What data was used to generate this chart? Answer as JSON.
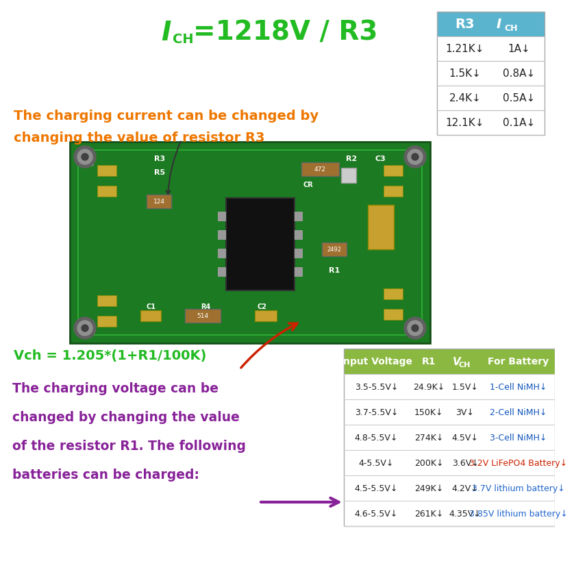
{
  "background_color": "#ffffff",
  "title_color": "#22bb22",
  "top_table_header_bg": "#5ab4cd",
  "top_table_header": [
    "R3",
    "ICH"
  ],
  "top_table_rows": [
    [
      "1.21K",
      "1A"
    ],
    [
      "1.5K",
      "0.8A"
    ],
    [
      "2.4K",
      "0.5A"
    ],
    [
      "12.1K",
      "0.1A"
    ]
  ],
  "orange_color": "#ee7700",
  "orange_line1": "The charging current can be changed by",
  "orange_line2": "changing the value of resistor R3",
  "bottom_formula": "Vch = 1.205*(1+R1/100K)",
  "bottom_formula_color": "#22bb22",
  "purple_color": "#882299",
  "purple_text_lines": [
    "The charging voltage can be",
    "changed by changing the value",
    "of the resistor R1. The following",
    "batteries can be charged:"
  ],
  "bottom_table_header_bg": "#8ab840",
  "bottom_table_header": [
    "Input Voltage",
    "R1",
    "VCH",
    "For Battery"
  ],
  "bottom_table_rows": [
    [
      "3.5-5.5V",
      "24.9K",
      "1.5V",
      "1-Cell NiMH"
    ],
    [
      "3.7-5.5V",
      "150K",
      "3V",
      "2-Cell NiMH"
    ],
    [
      "4.8-5.5V",
      "274K",
      "4.5V",
      "3-Cell NiMH"
    ],
    [
      "4-5.5V",
      "200K",
      "3.6V",
      "3.2V LiFePO4 Battery"
    ],
    [
      "4.5-5.5V",
      "249K",
      "4.2V",
      "3.7V lithium battery"
    ],
    [
      "4.6-5.5V",
      "261K",
      "4.35V",
      "3.85V lithium battery"
    ]
  ],
  "battery_colors": [
    "#1155bb",
    "#1155bb",
    "#1155bb",
    "#cc2200",
    "#2266cc",
    "#2266cc"
  ],
  "pcb_green": "#1c7a22",
  "pcb_border": "#145018"
}
